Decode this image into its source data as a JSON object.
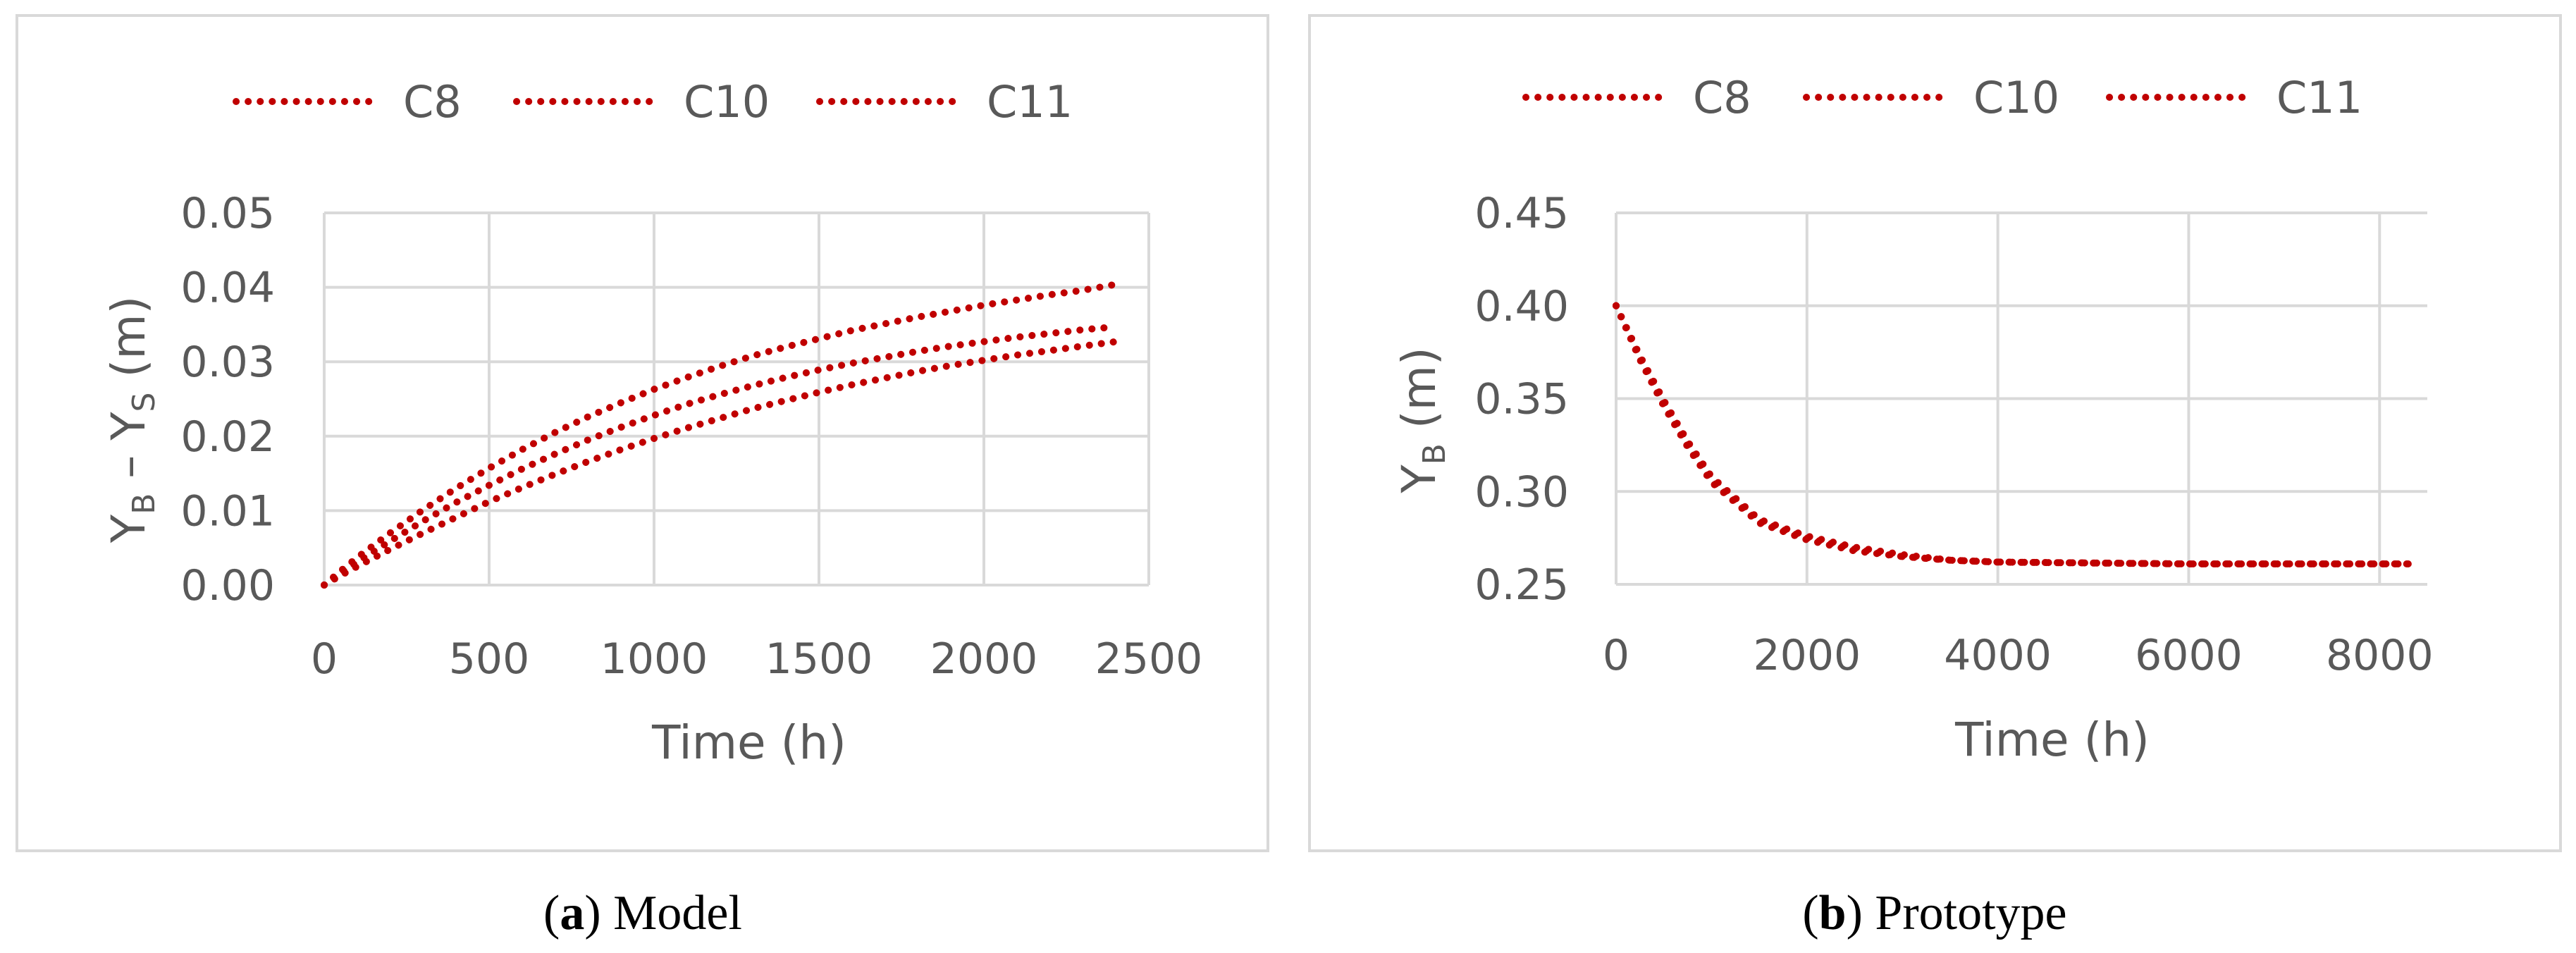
{
  "colors": {
    "series": "#C00000",
    "grid": "#D9D9D9",
    "text": "#595959",
    "frame": "#D9D9D9"
  },
  "chart_data": [
    {
      "type": "line",
      "panel": "a",
      "caption": {
        "letter": "a",
        "open": "(",
        "close": ")",
        "text": " Model"
      },
      "legend": [
        "C8",
        "C10",
        "C11"
      ],
      "xlabel": "Time (h)",
      "ylabel": {
        "main": "Y",
        "sub1": "B",
        "mid": " – Y",
        "sub2": "S",
        "tail": " (m)"
      },
      "xlim": [
        0,
        2500
      ],
      "ylim": [
        0,
        0.05
      ],
      "xticks": [
        0,
        500,
        1000,
        1500,
        2000,
        2500
      ],
      "yticks": [
        0,
        0.01,
        0.02,
        0.03,
        0.04,
        0.05
      ],
      "xtick_labels": [
        "0",
        "500",
        "1000",
        "1500",
        "2000",
        "2500"
      ],
      "ytick_labels": [
        "0.00",
        "0.01",
        "0.02",
        "0.03",
        "0.04",
        "0.05"
      ],
      "grid": true,
      "legend_position": "top",
      "series": [
        {
          "name": "C8",
          "x": [
            0,
            50,
            100,
            200,
            300,
            400,
            500,
            600,
            700,
            800,
            900,
            1000,
            1100,
            1200,
            1300,
            1400,
            1500,
            1600,
            1700,
            1800,
            1900,
            2000,
            2100,
            2200,
            2300,
            2400
          ],
          "y": [
            0.0,
            0.0013,
            0.0025,
            0.0048,
            0.007,
            0.0091,
            0.0112,
            0.0131,
            0.0149,
            0.0166,
            0.0182,
            0.0197,
            0.0211,
            0.0224,
            0.0237,
            0.0248,
            0.0259,
            0.0269,
            0.0278,
            0.0287,
            0.0295,
            0.0302,
            0.0309,
            0.0315,
            0.0321,
            0.0327
          ]
        },
        {
          "name": "C10",
          "x": [
            0,
            50,
            100,
            200,
            300,
            400,
            500,
            600,
            700,
            800,
            900,
            1000,
            1100,
            1200,
            1300,
            1400,
            1500,
            1600,
            1700,
            1800,
            1900,
            2000,
            2100,
            2200,
            2300,
            2400
          ],
          "y": [
            0.0,
            0.0016,
            0.0031,
            0.0059,
            0.0086,
            0.0111,
            0.0134,
            0.0156,
            0.0176,
            0.0195,
            0.0212,
            0.0228,
            0.0243,
            0.0256,
            0.0268,
            0.0279,
            0.0289,
            0.0298,
            0.0306,
            0.0314,
            0.0321,
            0.0327,
            0.0333,
            0.0338,
            0.0343,
            0.0347
          ]
        },
        {
          "name": "C11",
          "x": [
            0,
            50,
            100,
            200,
            300,
            400,
            500,
            600,
            700,
            800,
            900,
            1000,
            1100,
            1200,
            1300,
            1400,
            1500,
            1600,
            1700,
            1800,
            1900,
            2000,
            2100,
            2200,
            2300,
            2400
          ],
          "y": [
            0.0,
            0.0019,
            0.0037,
            0.007,
            0.0101,
            0.013,
            0.0157,
            0.0182,
            0.0205,
            0.0226,
            0.0245,
            0.0263,
            0.0279,
            0.0294,
            0.0308,
            0.032,
            0.0331,
            0.0342,
            0.0351,
            0.036,
            0.0368,
            0.0376,
            0.0383,
            0.039,
            0.0396,
            0.0404
          ]
        }
      ]
    },
    {
      "type": "line",
      "panel": "b",
      "caption": {
        "letter": "b",
        "open": "(",
        "close": ")",
        "text": " Prototype"
      },
      "legend": [
        "C8",
        "C10",
        "C11"
      ],
      "xlabel": "Time (h)",
      "ylabel": {
        "main": "Y",
        "sub1": "B",
        "mid": "",
        "sub2": "",
        "tail": " (m)"
      },
      "xlim": [
        0,
        8500
      ],
      "ylim": [
        0.25,
        0.45
      ],
      "xticks": [
        0,
        2000,
        4000,
        6000,
        8000
      ],
      "yticks": [
        0.25,
        0.3,
        0.35,
        0.4,
        0.45
      ],
      "xtick_labels": [
        "0",
        "2000",
        "4000",
        "6000",
        "8000"
      ],
      "ytick_labels": [
        "0.25",
        "0.30",
        "0.35",
        "0.40",
        "0.45"
      ],
      "grid": true,
      "legend_position": "top",
      "series": [
        {
          "name": "C8",
          "x": [
            0,
            250,
            500,
            750,
            1000,
            1500,
            2000,
            2500,
            3000,
            3500,
            4000,
            5000,
            6000,
            7000,
            8000,
            8300
          ],
          "y": [
            0.4,
            0.373,
            0.349,
            0.327,
            0.308,
            0.285,
            0.276,
            0.27,
            0.266,
            0.263,
            0.262,
            0.2615,
            0.261,
            0.261,
            0.261,
            0.261
          ]
        },
        {
          "name": "C10",
          "x": [
            0,
            250,
            500,
            750,
            1000,
            1500,
            2000,
            2500,
            3000,
            3500,
            4000,
            5000,
            6000,
            7000,
            8000,
            8300
          ],
          "y": [
            0.4,
            0.372,
            0.347,
            0.325,
            0.306,
            0.284,
            0.275,
            0.269,
            0.265,
            0.263,
            0.262,
            0.2615,
            0.261,
            0.261,
            0.261,
            0.261
          ]
        },
        {
          "name": "C11",
          "x": [
            0,
            250,
            500,
            750,
            1000,
            1500,
            2000,
            2500,
            3000,
            3500,
            4000,
            5000,
            6000,
            7000,
            8000,
            8300
          ],
          "y": [
            0.4,
            0.371,
            0.346,
            0.324,
            0.305,
            0.283,
            0.274,
            0.268,
            0.265,
            0.263,
            0.262,
            0.2615,
            0.261,
            0.261,
            0.261,
            0.261
          ]
        }
      ]
    }
  ]
}
